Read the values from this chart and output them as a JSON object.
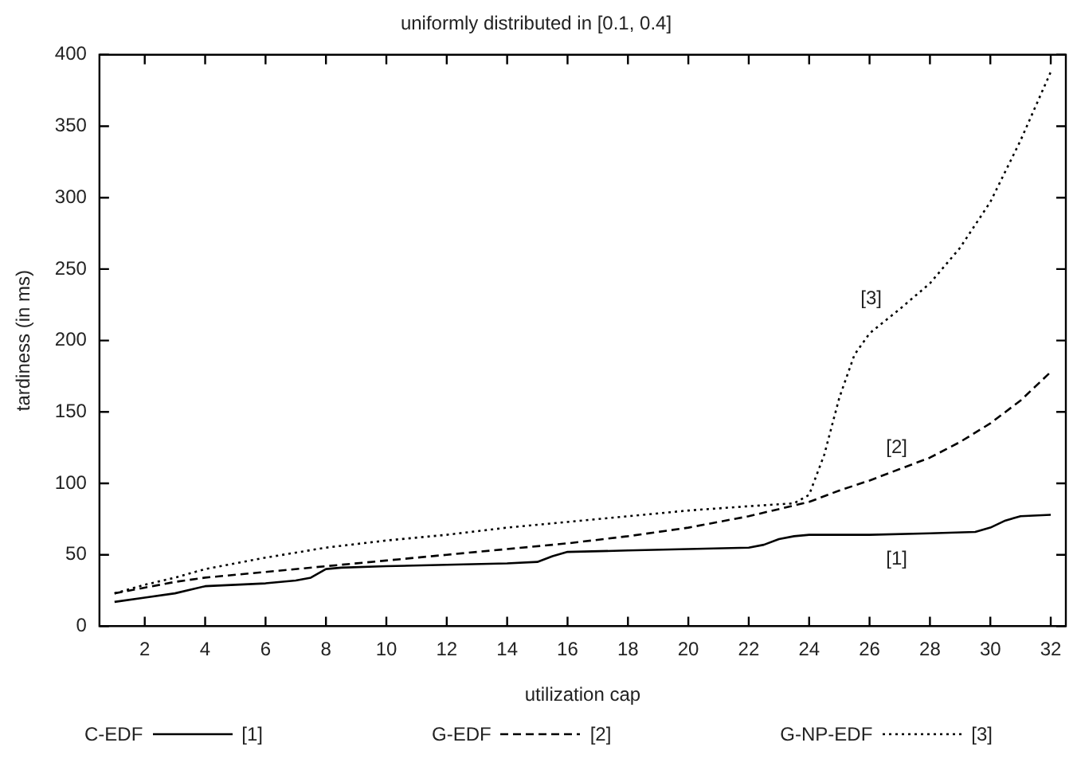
{
  "chart_data": {
    "type": "line",
    "title": "uniformly distributed in [0.1, 0.4]",
    "xlabel": "utilization cap",
    "ylabel": "tardiness (in ms)",
    "xlim": [
      0.5,
      32.5
    ],
    "xticks": [
      2,
      4,
      6,
      8,
      10,
      12,
      14,
      16,
      18,
      20,
      22,
      24,
      26,
      28,
      30,
      32
    ],
    "ylim": [
      0,
      400
    ],
    "yticks": [
      0,
      50,
      100,
      150,
      200,
      250,
      300,
      350,
      400
    ],
    "grid": false,
    "legend": "bottom",
    "marker": "none",
    "series": [
      {
        "name": "C-EDF",
        "color": "#000000",
        "line_style": "solid",
        "x": [
          1,
          2,
          3,
          4,
          5,
          6,
          7,
          7.5,
          8,
          8.5,
          10,
          12,
          14,
          15,
          15.5,
          16,
          18,
          20,
          22,
          22.5,
          23,
          23.5,
          24,
          26,
          28,
          29.5,
          30,
          30.5,
          31,
          32
        ],
        "values": [
          17,
          20,
          23,
          28,
          29,
          30,
          32,
          34,
          40,
          41,
          42,
          43,
          44,
          45,
          49,
          52,
          53,
          54,
          55,
          57,
          61,
          63,
          64,
          64,
          65,
          66,
          69,
          74,
          77,
          78
        ]
      },
      {
        "name": "G-EDF",
        "color": "#000000",
        "line_style": "dashed",
        "x": [
          1,
          2,
          3,
          4,
          6,
          8,
          10,
          12,
          14,
          16,
          18,
          20,
          22,
          24,
          25,
          26,
          27,
          28,
          29,
          30,
          31,
          32
        ],
        "values": [
          23,
          27,
          31,
          34,
          38,
          42,
          46,
          50,
          54,
          58,
          63,
          69,
          77,
          87,
          95,
          102,
          110,
          118,
          129,
          142,
          158,
          178
        ]
      },
      {
        "name": "G-NP-EDF",
        "color": "#000000",
        "line_style": "dotted",
        "x": [
          1,
          2,
          3,
          4,
          6,
          8,
          10,
          12,
          14,
          16,
          18,
          20,
          22,
          23.5,
          24,
          24.5,
          25,
          25.5,
          26,
          27,
          28,
          29,
          30,
          31,
          32
        ],
        "values": [
          23,
          29,
          34,
          40,
          48,
          55,
          60,
          64,
          69,
          73,
          77,
          81,
          84,
          86,
          92,
          120,
          160,
          190,
          205,
          222,
          240,
          265,
          297,
          340,
          388
        ]
      }
    ],
    "annotations": [
      "[1]",
      "[2]",
      "[3]"
    ]
  }
}
